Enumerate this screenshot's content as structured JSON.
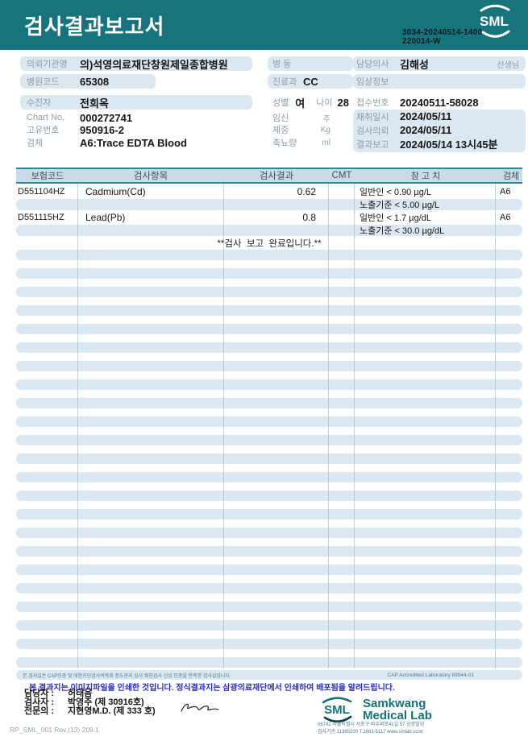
{
  "colors": {
    "accent_teal": "#18747C",
    "stripe_blue": "#DCE8F1",
    "table_header_bg": "#CADAE6",
    "notice_blue": "#2B2BC8",
    "footer_teal": "#15727A"
  },
  "header": {
    "title": "검사결과보고서",
    "logo_text": "SML",
    "report_no_line1": "3034-20240514-1400",
    "report_no_line2": "220014-W"
  },
  "info": {
    "left": {
      "referrer_label": "의뢰기관명",
      "referrer_value": "의)석영의료재단창원제일종합병원",
      "hospital_code_label": "병원코드",
      "hospital_code_value": "65308",
      "patient_label": "수진자",
      "patient_value": "전희옥",
      "chart_label": "Chart No.",
      "chart_value": "000272741",
      "id_label": "고유번호",
      "id_value": "950916-2",
      "specimen_label": "검체",
      "specimen_value": "A6:Trace EDTA Blood"
    },
    "middle": {
      "ward_label": "병  동",
      "ward_value": "",
      "dept_label": "진료과",
      "dept_value": "CC",
      "sex_label": "성별",
      "sex_value": "여",
      "age_label": "나이",
      "age_value": "28",
      "pregnancy_label": "임신",
      "pregnancy_unit": "주",
      "weight_label": "체중",
      "weight_unit": "Kg",
      "urine_label": "축뇨량",
      "urine_unit": "ml"
    },
    "right": {
      "doctor_label": "담당의사",
      "doctor_value": "김해성",
      "doctor_suffix": "선생님",
      "clinical_label": "임상정보",
      "clinical_value": "",
      "receipt_label": "접수번호",
      "receipt_value": "20240511-58028",
      "collect_label": "채취일시",
      "collect_value": "2024/05/11",
      "request_label": "검사의뢰",
      "request_value": "2024/05/11",
      "report_label": "결과보고",
      "report_value": "2024/05/14 13시45분"
    }
  },
  "table": {
    "headers": [
      "보험코드",
      "검사항목",
      "검사결과",
      "CMT",
      "참 고 치",
      "검체"
    ],
    "rows": [
      {
        "code": "D551104HZ",
        "name": "Cadmium(Cd)",
        "result": "0.62",
        "cmt": "",
        "ref": "일반인 < 0.90 µg/L",
        "spec": "A6"
      },
      {
        "code": "",
        "name": "",
        "result": "",
        "cmt": "",
        "ref": "노출기준 < 5.00 µg/L",
        "spec": ""
      },
      {
        "code": "D551115HZ",
        "name": "Lead(Pb)",
        "result": "0.8",
        "cmt": "",
        "ref": "일반인 < 1.7 µg/dL",
        "spec": "A6"
      },
      {
        "code": "",
        "name": "",
        "result": "",
        "cmt": "",
        "ref": "노출기준 < 30.0 µg/dL",
        "spec": ""
      }
    ],
    "completion": "**검사  보고  완료입니다.**"
  },
  "footer": {
    "accreditation_left": "본 검사실은 CAP인증 및 대한진단검사의학회 정도관리 심사 확인검사 신임 인증을 만족한 검사실입니다.",
    "accreditation_right": "CAP Accredited Laboratory 69944-01",
    "notice": "본 결과지는 이미지파일을 인쇄한 것입니다. 정식결과지는 삼광의료재단에서 인쇄하여 배포됨을 알려드립니다.",
    "staff_label": "담당자 :",
    "staff_value": "허태음",
    "tester_label": "검사자 :",
    "tester_value": "박영주 (제 30916호)",
    "specialist_label": "전문의 :",
    "specialist_value": "지현영M.D. (제 333 호)",
    "doc_code": "RP_SML_001 Rev.(13) 209.1",
    "lab_logo_text": "SML",
    "lab_name_line1": "Samkwang",
    "lab_name_line2": "Medical Lab",
    "address": "06742 서울특별시 서초구 바우뫼로41길 57 삼광빌딩",
    "contact": "검사기관 11385200 T.1661-5117 www.smlab.co.kr"
  }
}
